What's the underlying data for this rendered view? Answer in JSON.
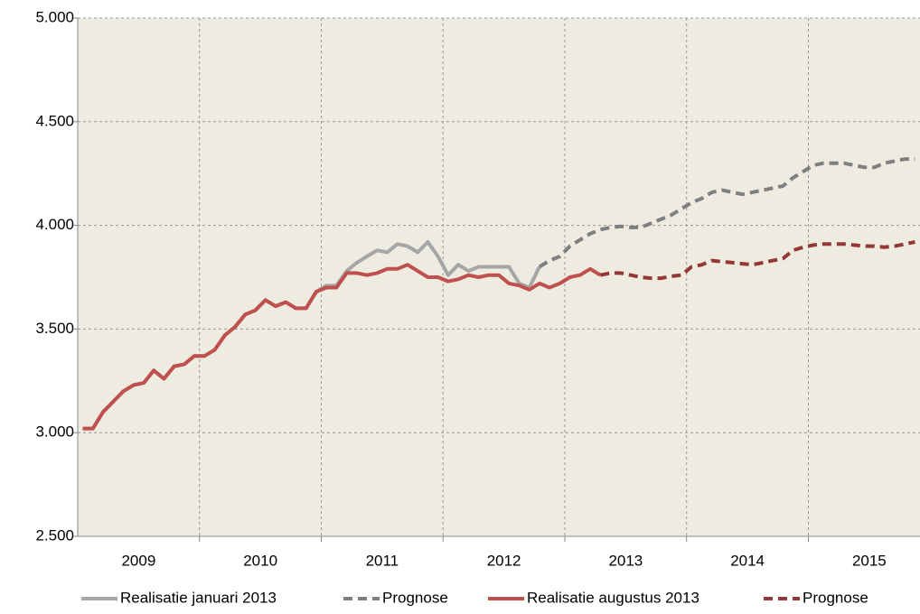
{
  "chart_data": {
    "type": "line",
    "categories": [
      null,
      null,
      null,
      null,
      null,
      null,
      "2009",
      null,
      null,
      null,
      null,
      null,
      null,
      null,
      null,
      null,
      null,
      null,
      "2010",
      null,
      null,
      null,
      null,
      null,
      null,
      null,
      null,
      null,
      null,
      null,
      "2011",
      null,
      null,
      null,
      null,
      null,
      null,
      null,
      null,
      null,
      null,
      null,
      "2012",
      null,
      null,
      null,
      null,
      null,
      null,
      null,
      null,
      null,
      null,
      null,
      "2013",
      null,
      null,
      null,
      null,
      null,
      null,
      null,
      null,
      null,
      null,
      null,
      "2014",
      null,
      null,
      null,
      null,
      null,
      null,
      null,
      null,
      null,
      null,
      null,
      "2015",
      null,
      null,
      null,
      null
    ],
    "series": [
      {
        "name": "Realisatie januari 2013",
        "color": "#a6a6a6",
        "dashed": false,
        "values": [
          3020,
          3020,
          3100,
          3150,
          3200,
          3230,
          3240,
          3300,
          3260,
          3320,
          3330,
          3370,
          3370,
          3400,
          3470,
          3510,
          3570,
          3590,
          3640,
          3610,
          3630,
          3600,
          3600,
          3680,
          3710,
          3710,
          3780,
          3820,
          3850,
          3880,
          3870,
          3910,
          3900,
          3870,
          3920,
          3850,
          3760,
          3810,
          3780,
          3800,
          3800,
          3800,
          3800,
          3720,
          3700,
          3800,
          null,
          null,
          null,
          null,
          null,
          null,
          null,
          null,
          null,
          null,
          null,
          null,
          null,
          null,
          null,
          null,
          null,
          null,
          null,
          null,
          null,
          null,
          null,
          null,
          null,
          null,
          null,
          null,
          null,
          null,
          null,
          null,
          null,
          null,
          null,
          null,
          null
        ]
      },
      {
        "name": "Prognose",
        "color": "#7f7f7f",
        "dashed": true,
        "values": [
          null,
          null,
          null,
          null,
          null,
          null,
          null,
          null,
          null,
          null,
          null,
          null,
          null,
          null,
          null,
          null,
          null,
          null,
          null,
          null,
          null,
          null,
          null,
          null,
          null,
          null,
          null,
          null,
          null,
          null,
          null,
          null,
          null,
          null,
          null,
          null,
          null,
          null,
          null,
          null,
          null,
          null,
          null,
          null,
          null,
          3800,
          3830,
          3850,
          3900,
          3930,
          3960,
          3980,
          3990,
          3995,
          3990,
          3990,
          4010,
          4030,
          4050,
          4080,
          4110,
          4130,
          4160,
          4170,
          4160,
          4150,
          4160,
          4170,
          4180,
          4190,
          4230,
          4260,
          4290,
          4300,
          4300,
          4300,
          4290,
          4280,
          4280,
          4300,
          4310,
          4320,
          4320
        ]
      },
      {
        "name": "Realisatie augustus 2013",
        "color": "#c0504d",
        "dashed": false,
        "values": [
          3020,
          3020,
          3100,
          3150,
          3200,
          3230,
          3240,
          3300,
          3260,
          3320,
          3330,
          3370,
          3370,
          3400,
          3470,
          3510,
          3570,
          3590,
          3640,
          3610,
          3630,
          3600,
          3600,
          3680,
          3700,
          3700,
          3770,
          3770,
          3760,
          3770,
          3790,
          3790,
          3810,
          3780,
          3750,
          3750,
          3730,
          3740,
          3760,
          3750,
          3760,
          3760,
          3720,
          3710,
          3690,
          3720,
          3700,
          3720,
          3750,
          3760,
          3790,
          3760,
          null,
          null,
          null,
          null,
          null,
          null,
          null,
          null,
          null,
          null,
          null,
          null,
          null,
          null,
          null,
          null,
          null,
          null,
          null,
          null,
          null,
          null,
          null,
          null,
          null,
          null,
          null,
          null,
          null,
          null,
          null
        ]
      },
      {
        "name": "Prognose",
        "color": "#953735",
        "dashed": true,
        "values": [
          null,
          null,
          null,
          null,
          null,
          null,
          null,
          null,
          null,
          null,
          null,
          null,
          null,
          null,
          null,
          null,
          null,
          null,
          null,
          null,
          null,
          null,
          null,
          null,
          null,
          null,
          null,
          null,
          null,
          null,
          null,
          null,
          null,
          null,
          null,
          null,
          null,
          null,
          null,
          null,
          null,
          null,
          null,
          null,
          null,
          null,
          null,
          null,
          null,
          null,
          null,
          3760,
          3770,
          3770,
          3760,
          3750,
          3745,
          3745,
          3755,
          3760,
          3800,
          3810,
          3830,
          3825,
          3820,
          3815,
          3810,
          3820,
          3830,
          3840,
          3880,
          3895,
          3905,
          3910,
          3910,
          3910,
          3905,
          3900,
          3900,
          3895,
          3900,
          3910,
          3920
        ]
      }
    ],
    "ylim": [
      2500,
      5000
    ],
    "yticks": [
      {
        "value": 2500,
        "label": "2.500"
      },
      {
        "value": 3000,
        "label": "3.000"
      },
      {
        "value": 3500,
        "label": "3.500"
      },
      {
        "value": 4000,
        "label": "4.000"
      },
      {
        "value": 4500,
        "label": "4.500"
      },
      {
        "value": 5000,
        "label": "5.000"
      }
    ],
    "grid": true,
    "legend": "bottom",
    "background": "#eeebe1"
  }
}
